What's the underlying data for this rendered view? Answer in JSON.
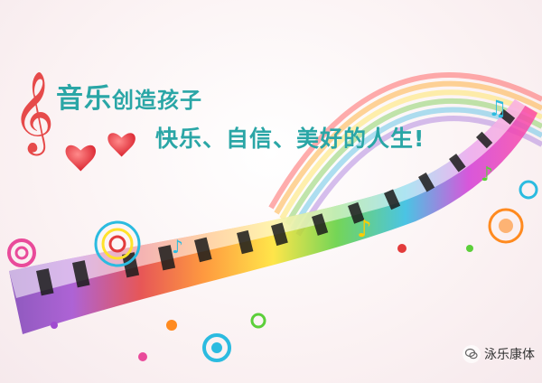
{
  "poster": {
    "headline_accent": "音乐",
    "headline_rest": "创造孩子",
    "subline": "快乐、自信、美好的人生!",
    "watermark": "泳乐康体"
  },
  "icons": [
    "treble-clef-icon",
    "heart-icon",
    "heart-icon",
    "music-note-icon",
    "wechat-icon"
  ],
  "colors": {
    "text": "#2aa6a6",
    "heart": "#e8303a",
    "clef": "#e64a4a"
  }
}
